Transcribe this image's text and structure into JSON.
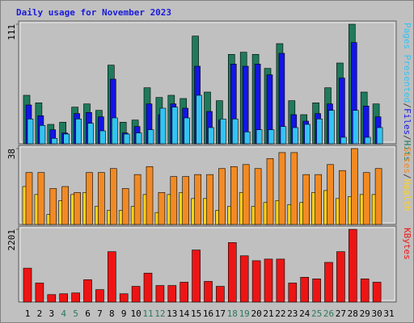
{
  "title": "Daily usage for November 2023",
  "legend_separator": "/",
  "chart_data": [
    {
      "type": "bar",
      "ylim": [
        0,
        111
      ],
      "yticks": [
        111
      ],
      "series": [
        {
          "name": "Hits",
          "color": "#1f7a5c",
          "values": [
            45,
            38,
            18,
            20,
            34,
            37,
            31,
            73,
            20,
            22,
            52,
            43,
            45,
            42,
            100,
            48,
            40,
            83,
            85,
            83,
            70,
            93,
            40,
            27,
            38,
            52,
            75,
            111,
            48,
            37,
            null
          ]
        },
        {
          "name": "Files",
          "color": "#1414e6",
          "values": [
            36,
            26,
            13,
            10,
            28,
            29,
            25,
            60,
            10,
            16,
            37,
            27,
            37,
            33,
            72,
            30,
            22,
            74,
            72,
            74,
            64,
            84,
            27,
            21,
            28,
            37,
            61,
            94,
            35,
            25,
            null
          ]
        },
        {
          "name": "Pages Presented",
          "color": "#33c3f2",
          "values": [
            23,
            17,
            5,
            9,
            23,
            19,
            12,
            24,
            9,
            10,
            13,
            33,
            34,
            24,
            45,
            15,
            23,
            23,
            11,
            13,
            13,
            16,
            15,
            18,
            23,
            31,
            6,
            31,
            6,
            15,
            null
          ]
        }
      ]
    },
    {
      "type": "bar",
      "ylim": [
        0,
        38
      ],
      "yticks": [
        38
      ],
      "series": [
        {
          "name": "Health",
          "color": "#ffd21a",
          "values": [
            19,
            15,
            5,
            12,
            15,
            16,
            9,
            7,
            7,
            9,
            15,
            6,
            15,
            16,
            13,
            13,
            7,
            9,
            16,
            9,
            11,
            12,
            10,
            11,
            16,
            17,
            13,
            14,
            15,
            15,
            null
          ]
        },
        {
          "name": "Sites",
          "color": "#f28a24",
          "values": [
            26,
            26,
            18,
            19,
            16,
            26,
            26,
            28,
            18,
            25,
            29,
            16,
            24,
            24,
            25,
            25,
            28,
            29,
            30,
            28,
            33,
            36,
            36,
            25,
            25,
            30,
            27,
            38,
            26,
            28,
            null
          ]
        }
      ]
    },
    {
      "type": "bar",
      "ylim": [
        0,
        2201
      ],
      "yticks": [
        2201
      ],
      "categories": [
        "1",
        "2",
        "3",
        "4",
        "5",
        "6",
        "7",
        "8",
        "9",
        "10",
        "11",
        "12",
        "13",
        "14",
        "15",
        "16",
        "17",
        "18",
        "19",
        "20",
        "21",
        "22",
        "23",
        "24",
        "25",
        "26",
        "27",
        "28",
        "29",
        "30",
        "31"
      ],
      "category_colors": [
        "#000",
        "#000",
        "#000",
        "#2a7a5a",
        "#2a7a5a",
        "#000",
        "#000",
        "#000",
        "#000",
        "#000",
        "#2a7a5a",
        "#2a7a5a",
        "#000",
        "#000",
        "#000",
        "#000",
        "#000",
        "#2a7a5a",
        "#2a7a5a",
        "#000",
        "#000",
        "#000",
        "#000",
        "#000",
        "#2a7a5a",
        "#2a7a5a",
        "#000",
        "#000",
        "#000",
        "#000",
        "#000"
      ],
      "series": [
        {
          "name": "KBytes",
          "color": "#ee1414",
          "values": [
            1025,
            575,
            225,
            250,
            275,
            675,
            375,
            1525,
            250,
            475,
            875,
            500,
            500,
            600,
            1575,
            625,
            475,
            1800,
            1400,
            1250,
            1300,
            1300,
            575,
            750,
            700,
            1200,
            1525,
            2201,
            700,
            600,
            null
          ]
        }
      ]
    }
  ]
}
